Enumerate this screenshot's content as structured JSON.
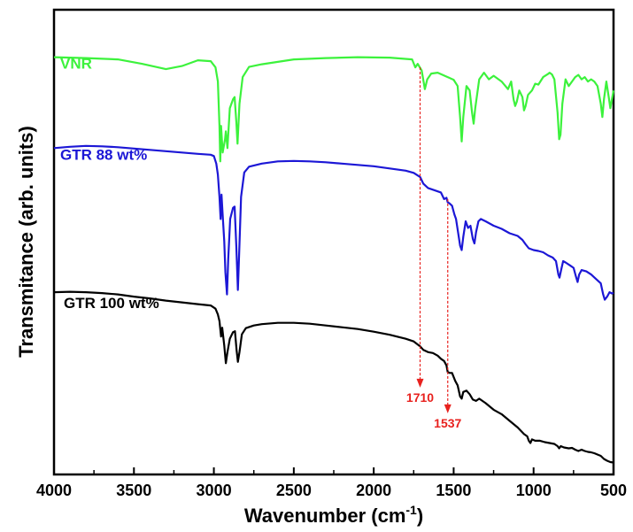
{
  "chart_data": {
    "type": "line",
    "xlabel": "Wavenumber (cm",
    "xlabel_sup": "-1",
    "xlabel_end": ")",
    "ylabel": "Transmitance (arb. units)",
    "xlim": [
      4000,
      500
    ],
    "x_reversed": true,
    "ylim": [
      0,
      100
    ],
    "y_ticks_shown": false,
    "x_ticks": [
      "4000",
      "3500",
      "3000",
      "2500",
      "2000",
      "1500",
      "1000",
      "500"
    ],
    "grid": false,
    "colors": {
      "annotation": "#e8211e"
    },
    "series": [
      {
        "name": "VNR",
        "color": "#3cf23c",
        "points": [
          [
            4000,
            91.5
          ],
          [
            3800,
            91.3
          ],
          [
            3600,
            91.0
          ],
          [
            3450,
            90.0
          ],
          [
            3300,
            88.8
          ],
          [
            3200,
            89.5
          ],
          [
            3100,
            90.8
          ],
          [
            3020,
            90.6
          ],
          [
            2990,
            89.2
          ],
          [
            2975,
            86.0
          ],
          [
            2965,
            76.0
          ],
          [
            2960,
            68.0
          ],
          [
            2955,
            76.0
          ],
          [
            2945,
            70.0
          ],
          [
            2930,
            73.0
          ],
          [
            2925,
            74.8
          ],
          [
            2915,
            71.0
          ],
          [
            2900,
            80.0
          ],
          [
            2880,
            82.0
          ],
          [
            2870,
            82.5
          ],
          [
            2860,
            77.0
          ],
          [
            2852,
            72.0
          ],
          [
            2840,
            81.0
          ],
          [
            2820,
            87.0
          ],
          [
            2780,
            89.3
          ],
          [
            2700,
            89.9
          ],
          [
            2500,
            91.0
          ],
          [
            2300,
            91.3
          ],
          [
            2100,
            91.5
          ],
          [
            1900,
            91.4
          ],
          [
            1760,
            91.0
          ],
          [
            1740,
            89.2
          ],
          [
            1725,
            90.0
          ],
          [
            1700,
            88.5
          ],
          [
            1680,
            84.3
          ],
          [
            1665,
            86.5
          ],
          [
            1640,
            87.8
          ],
          [
            1600,
            88.0
          ],
          [
            1550,
            87.2
          ],
          [
            1500,
            86.4
          ],
          [
            1475,
            85.0
          ],
          [
            1460,
            78.0
          ],
          [
            1450,
            72.5
          ],
          [
            1440,
            78.0
          ],
          [
            1420,
            85.0
          ],
          [
            1400,
            84.0
          ],
          [
            1385,
            79.0
          ],
          [
            1375,
            76.5
          ],
          [
            1365,
            80.0
          ],
          [
            1340,
            86.5
          ],
          [
            1310,
            88.0
          ],
          [
            1280,
            86.5
          ],
          [
            1250,
            87.3
          ],
          [
            1200,
            86.0
          ],
          [
            1160,
            84.3
          ],
          [
            1140,
            86.0
          ],
          [
            1125,
            82.0
          ],
          [
            1115,
            80.5
          ],
          [
            1105,
            81.5
          ],
          [
            1090,
            84.0
          ],
          [
            1070,
            82.5
          ],
          [
            1060,
            79.5
          ],
          [
            1050,
            80.5
          ],
          [
            1035,
            83.0
          ],
          [
            1010,
            84.0
          ],
          [
            990,
            85.5
          ],
          [
            970,
            85.3
          ],
          [
            940,
            87.0
          ],
          [
            910,
            87.7
          ],
          [
            900,
            88.0
          ],
          [
            885,
            87.6
          ],
          [
            870,
            86.5
          ],
          [
            850,
            79.0
          ],
          [
            840,
            73.0
          ],
          [
            832,
            74.0
          ],
          [
            820,
            81.0
          ],
          [
            800,
            86.5
          ],
          [
            780,
            85.0
          ],
          [
            760,
            86.0
          ],
          [
            740,
            87.0
          ],
          [
            720,
            87.5
          ],
          [
            700,
            86.5
          ],
          [
            680,
            87.0
          ],
          [
            660,
            86.0
          ],
          [
            640,
            86.5
          ],
          [
            620,
            86.0
          ],
          [
            600,
            85.0
          ],
          [
            580,
            81.0
          ],
          [
            570,
            78.0
          ],
          [
            560,
            82.0
          ],
          [
            545,
            86.0
          ],
          [
            530,
            82.5
          ],
          [
            520,
            80.0
          ],
          [
            505,
            83.0
          ],
          [
            500,
            84.0
          ]
        ]
      },
      {
        "name": "GTR 88 wt%",
        "color": "#1c17d6",
        "points": [
          [
            4000,
            71.0
          ],
          [
            3900,
            71.3
          ],
          [
            3800,
            71.5
          ],
          [
            3700,
            71.4
          ],
          [
            3600,
            71.2
          ],
          [
            3500,
            70.9
          ],
          [
            3400,
            70.6
          ],
          [
            3300,
            70.3
          ],
          [
            3200,
            70.0
          ],
          [
            3100,
            69.7
          ],
          [
            3020,
            69.5
          ],
          [
            3000,
            69.2
          ],
          [
            2985,
            67.5
          ],
          [
            2975,
            65.0
          ],
          [
            2965,
            60.0
          ],
          [
            2958,
            55.0
          ],
          [
            2952,
            60.5
          ],
          [
            2945,
            56.0
          ],
          [
            2935,
            50.0
          ],
          [
            2928,
            43.0
          ],
          [
            2918,
            38.0
          ],
          [
            2910,
            46.0
          ],
          [
            2898,
            55.0
          ],
          [
            2880,
            57.5
          ],
          [
            2870,
            57.8
          ],
          [
            2860,
            49.0
          ],
          [
            2850,
            39.0
          ],
          [
            2842,
            47.0
          ],
          [
            2830,
            60.0
          ],
          [
            2810,
            65.5
          ],
          [
            2780,
            66.8
          ],
          [
            2700,
            67.5
          ],
          [
            2600,
            68.0
          ],
          [
            2500,
            68.1
          ],
          [
            2400,
            68.0
          ],
          [
            2300,
            67.8
          ],
          [
            2200,
            67.5
          ],
          [
            2100,
            67.2
          ],
          [
            2000,
            66.9
          ],
          [
            1900,
            66.4
          ],
          [
            1800,
            65.9
          ],
          [
            1750,
            65.4
          ],
          [
            1710,
            64.5
          ],
          [
            1690,
            63.0
          ],
          [
            1660,
            62.0
          ],
          [
            1620,
            61.5
          ],
          [
            1580,
            61.0
          ],
          [
            1560,
            59.5
          ],
          [
            1545,
            59.8
          ],
          [
            1537,
            58.8
          ],
          [
            1525,
            58.5
          ],
          [
            1510,
            58.0
          ],
          [
            1495,
            56.0
          ],
          [
            1485,
            55.0
          ],
          [
            1470,
            51.5
          ],
          [
            1460,
            49.0
          ],
          [
            1450,
            48.0
          ],
          [
            1440,
            51.0
          ],
          [
            1425,
            54.5
          ],
          [
            1410,
            53.0
          ],
          [
            1395,
            53.5
          ],
          [
            1380,
            50.5
          ],
          [
            1370,
            49.5
          ],
          [
            1360,
            52.0
          ],
          [
            1345,
            54.5
          ],
          [
            1330,
            55.0
          ],
          [
            1300,
            54.5
          ],
          [
            1250,
            53.5
          ],
          [
            1200,
            52.8
          ],
          [
            1150,
            51.8
          ],
          [
            1100,
            51.2
          ],
          [
            1070,
            50.3
          ],
          [
            1050,
            49.3
          ],
          [
            1030,
            48.4
          ],
          [
            1000,
            48.0
          ],
          [
            970,
            47.8
          ],
          [
            940,
            47.5
          ],
          [
            910,
            46.8
          ],
          [
            880,
            46.3
          ],
          [
            860,
            45.5
          ],
          [
            845,
            42.5
          ],
          [
            838,
            41.8
          ],
          [
            828,
            43.5
          ],
          [
            815,
            45.5
          ],
          [
            800,
            45.2
          ],
          [
            770,
            44.5
          ],
          [
            750,
            44.0
          ],
          [
            735,
            42.0
          ],
          [
            725,
            40.8
          ],
          [
            715,
            42.5
          ],
          [
            700,
            43.5
          ],
          [
            670,
            43.2
          ],
          [
            640,
            42.5
          ],
          [
            610,
            41.5
          ],
          [
            580,
            40.5
          ],
          [
            565,
            38.0
          ],
          [
            555,
            36.8
          ],
          [
            540,
            37.5
          ],
          [
            525,
            38.5
          ],
          [
            510,
            38.2
          ],
          [
            500,
            38.4
          ]
        ]
      },
      {
        "name": "GTR 100 wt%",
        "color": "#000000",
        "points": [
          [
            4000,
            38.5
          ],
          [
            3900,
            38.6
          ],
          [
            3800,
            38.5
          ],
          [
            3700,
            38.3
          ],
          [
            3600,
            38.0
          ],
          [
            3500,
            37.5
          ],
          [
            3400,
            37.1
          ],
          [
            3300,
            36.6
          ],
          [
            3200,
            36.2
          ],
          [
            3100,
            35.8
          ],
          [
            3020,
            35.5
          ],
          [
            2990,
            34.8
          ],
          [
            2975,
            33.5
          ],
          [
            2965,
            32.0
          ],
          [
            2955,
            28.5
          ],
          [
            2948,
            30.5
          ],
          [
            2935,
            26.5
          ],
          [
            2925,
            22.5
          ],
          [
            2915,
            25.0
          ],
          [
            2900,
            28.0
          ],
          [
            2880,
            29.5
          ],
          [
            2868,
            29.7
          ],
          [
            2858,
            25.5
          ],
          [
            2850,
            22.8
          ],
          [
            2840,
            25.0
          ],
          [
            2825,
            29.0
          ],
          [
            2800,
            30.4
          ],
          [
            2750,
            31.0
          ],
          [
            2700,
            31.3
          ],
          [
            2600,
            31.6
          ],
          [
            2500,
            31.6
          ],
          [
            2400,
            31.4
          ],
          [
            2300,
            31.0
          ],
          [
            2200,
            30.6
          ],
          [
            2100,
            30.2
          ],
          [
            2000,
            29.6
          ],
          [
            1900,
            28.9
          ],
          [
            1800,
            28.0
          ],
          [
            1750,
            27.4
          ],
          [
            1710,
            26.3
          ],
          [
            1690,
            25.5
          ],
          [
            1660,
            25.0
          ],
          [
            1630,
            24.8
          ],
          [
            1600,
            24.2
          ],
          [
            1580,
            23.5
          ],
          [
            1560,
            23.0
          ],
          [
            1545,
            22.0
          ],
          [
            1537,
            20.5
          ],
          [
            1525,
            20.3
          ],
          [
            1510,
            20.3
          ],
          [
            1490,
            18.5
          ],
          [
            1475,
            17.5
          ],
          [
            1460,
            15.0
          ],
          [
            1450,
            14.5
          ],
          [
            1440,
            16.0
          ],
          [
            1420,
            16.3
          ],
          [
            1400,
            15.5
          ],
          [
            1380,
            14.3
          ],
          [
            1360,
            14.0
          ],
          [
            1340,
            14.5
          ],
          [
            1300,
            13.5
          ],
          [
            1250,
            12.0
          ],
          [
            1200,
            11.0
          ],
          [
            1150,
            9.5
          ],
          [
            1100,
            8.0
          ],
          [
            1060,
            6.5
          ],
          [
            1040,
            6.0
          ],
          [
            1030,
            5.0
          ],
          [
            1020,
            4.5
          ],
          [
            1010,
            5.3
          ],
          [
            990,
            5.0
          ],
          [
            960,
            5.0
          ],
          [
            930,
            4.7
          ],
          [
            900,
            4.5
          ],
          [
            870,
            4.3
          ],
          [
            850,
            3.8
          ],
          [
            840,
            3.3
          ],
          [
            830,
            3.8
          ],
          [
            810,
            3.5
          ],
          [
            780,
            3.3
          ],
          [
            760,
            3.4
          ],
          [
            740,
            3.0
          ],
          [
            720,
            2.7
          ],
          [
            700,
            3.0
          ],
          [
            680,
            2.7
          ],
          [
            660,
            2.5
          ],
          [
            640,
            2.4
          ],
          [
            620,
            2.2
          ],
          [
            600,
            1.9
          ],
          [
            580,
            1.6
          ],
          [
            560,
            0.9
          ],
          [
            540,
            0.5
          ],
          [
            520,
            0.2
          ],
          [
            500,
            0.1
          ]
        ]
      }
    ],
    "series_labels": [
      {
        "series": 0,
        "text": "VNR"
      },
      {
        "series": 1,
        "text": "GTR 88 wt%"
      },
      {
        "series": 2,
        "text": "GTR 100 wt%"
      }
    ],
    "annotations": [
      {
        "x": 1710,
        "y_top": 89.2,
        "y_bottom": 17.0,
        "label": "1710"
      },
      {
        "x": 1537,
        "y_top": 59.5,
        "y_bottom": 11.2,
        "label": "1537"
      }
    ]
  }
}
